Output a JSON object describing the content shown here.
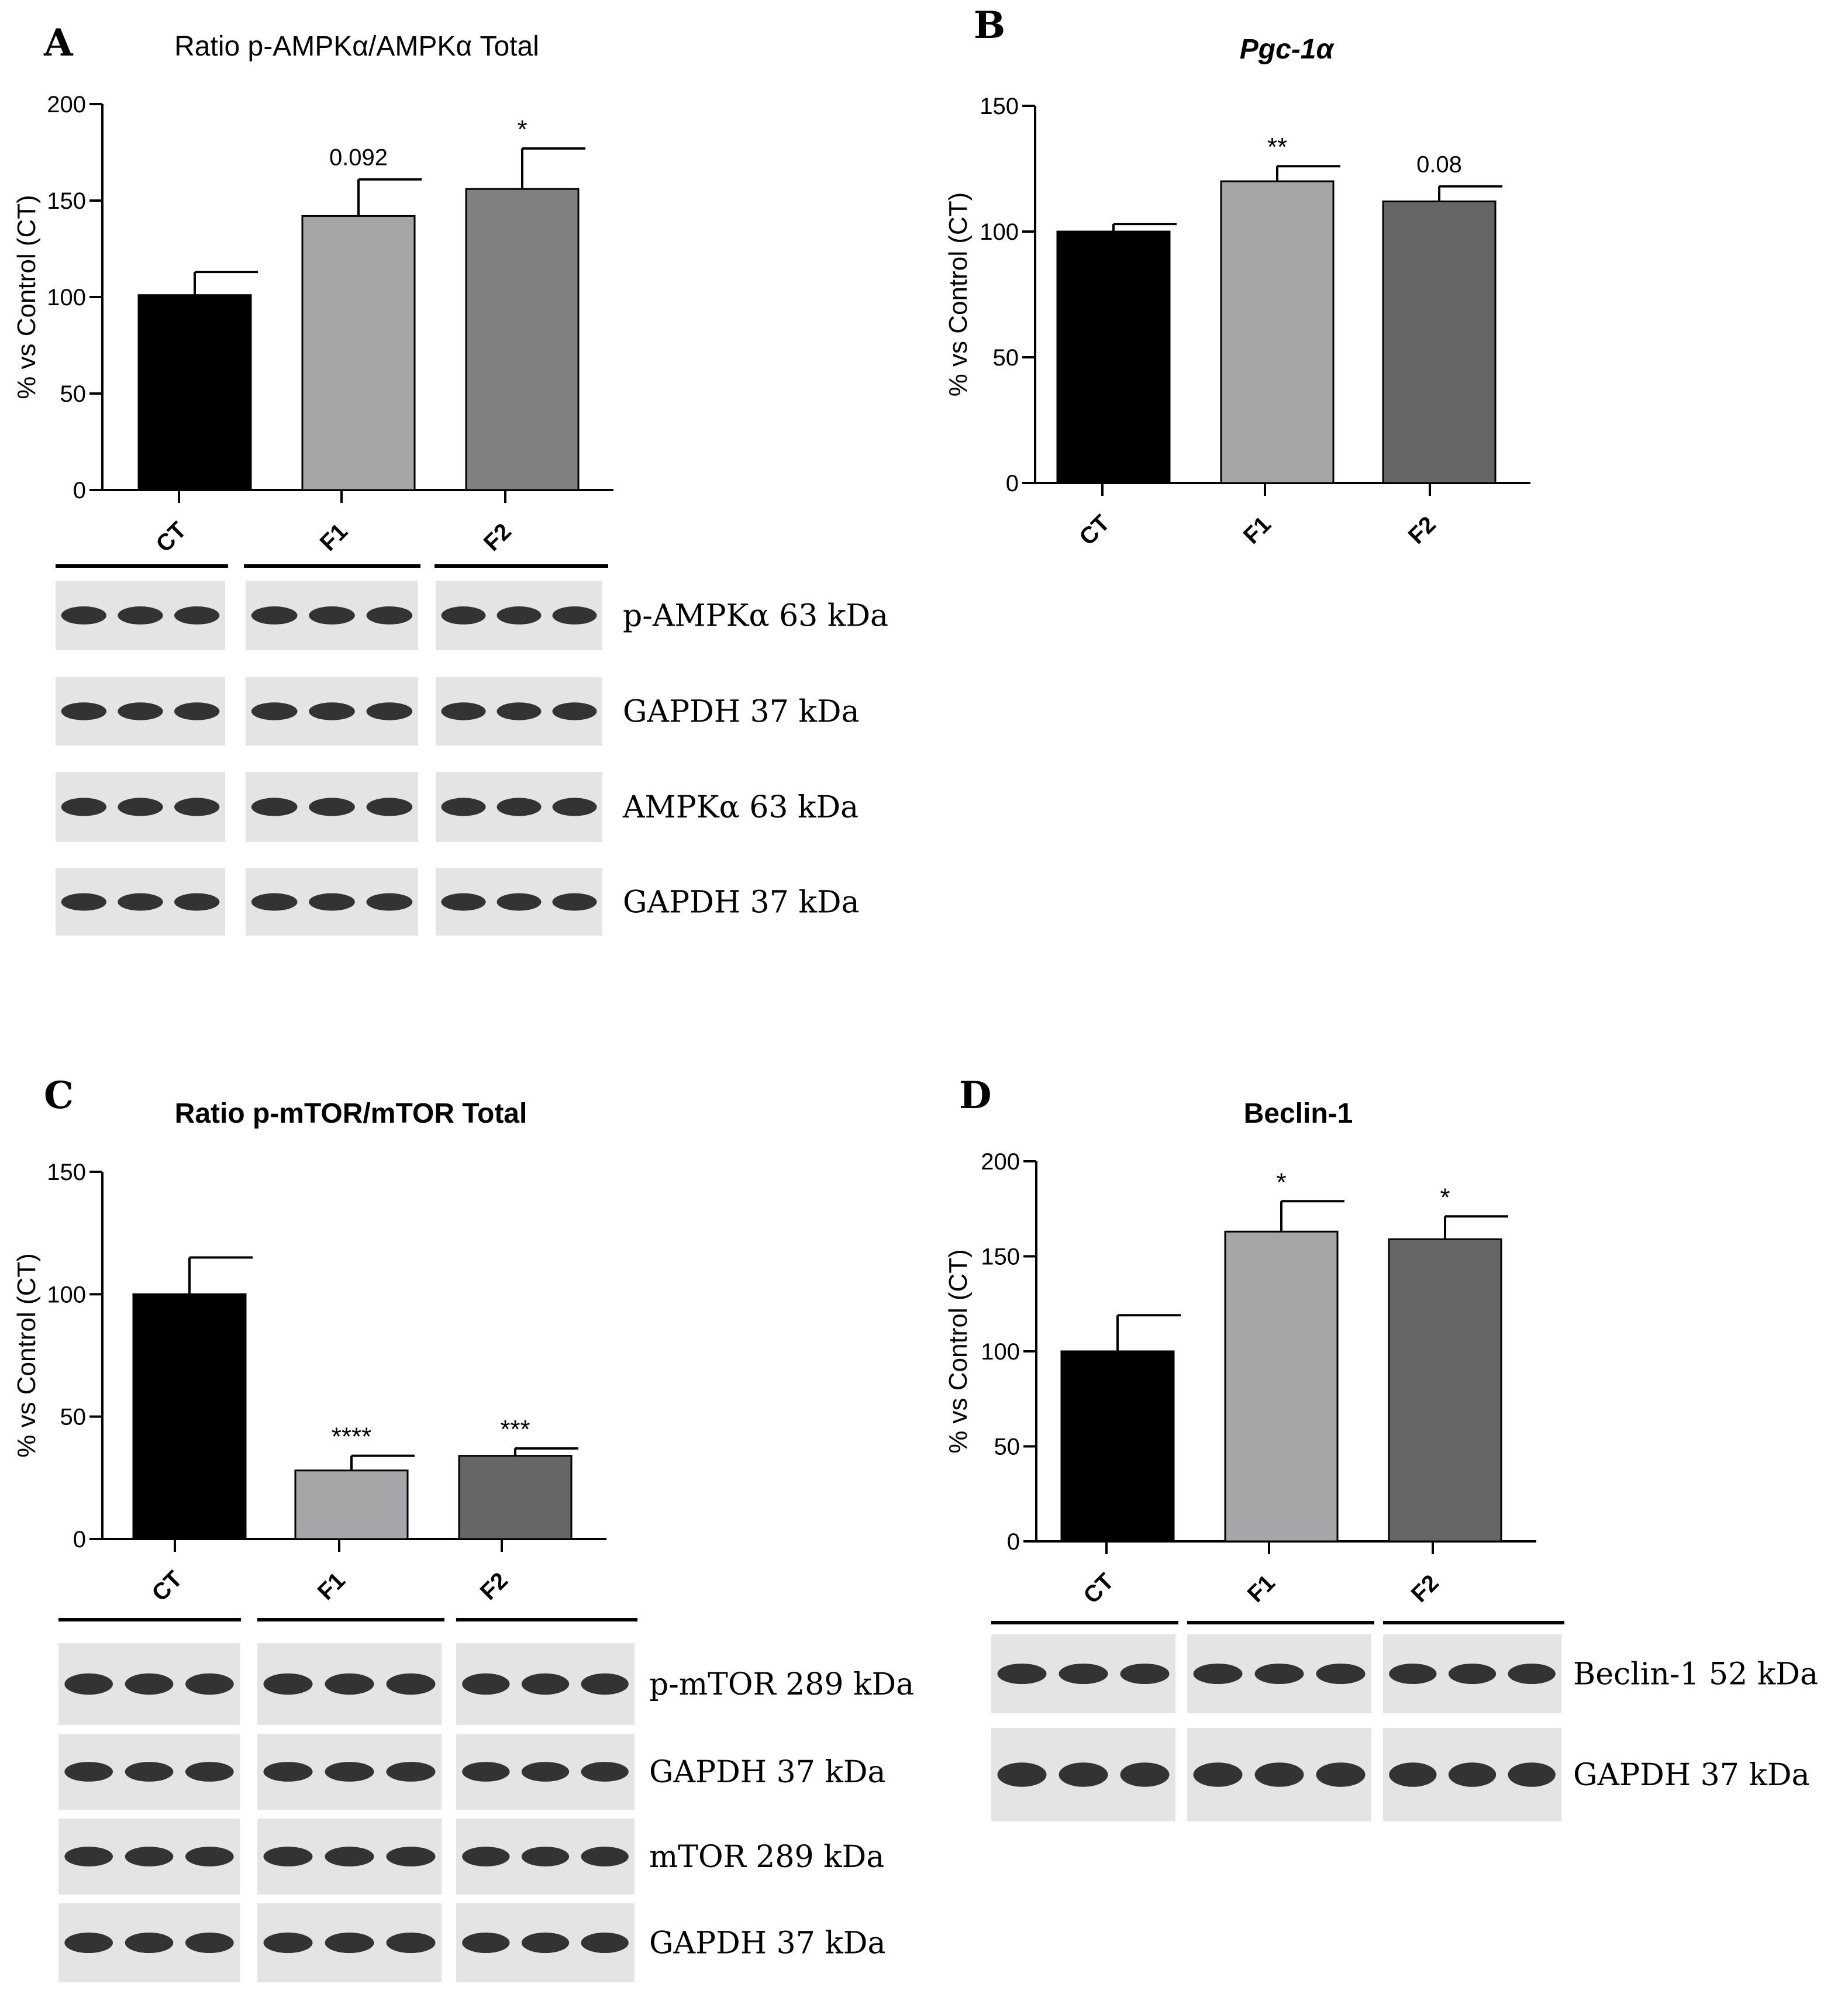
{
  "chart_data": [
    {
      "type": "bar",
      "panel_letter": "A",
      "title": "Ratio p-AMPKα/AMPKα Total",
      "ylabel": "% vs Control (CT)",
      "categories": [
        "CT",
        "F1",
        "F2"
      ],
      "values": [
        101,
        142,
        156
      ],
      "error": [
        12,
        19,
        21
      ],
      "annotations": [
        "",
        "0.092",
        "*"
      ],
      "ylim": [
        0,
        200
      ],
      "yticks": [
        0,
        50,
        100,
        150,
        200
      ],
      "bar_colors": [
        "#000000",
        "#a6a6a8",
        "#808080"
      ],
      "blot_rows": [
        "p-AMPKα 63 kDa",
        "GAPDH 37 kDa",
        "AMPKα 63 kDa",
        "GAPDH 37 kDa"
      ]
    },
    {
      "type": "bar",
      "panel_letter": "B",
      "title": "Pgc-1α",
      "ylabel": "% vs Control (CT)",
      "categories": [
        "CT",
        "F1",
        "F2"
      ],
      "values": [
        100,
        120,
        112
      ],
      "error": [
        3,
        6,
        6
      ],
      "annotations": [
        "",
        "**",
        "0.08"
      ],
      "ylim": [
        0,
        150
      ],
      "yticks": [
        0,
        50,
        100,
        150
      ],
      "bar_colors": [
        "#000000",
        "#a6a6a8",
        "#666666"
      ],
      "blot_rows": []
    },
    {
      "type": "bar",
      "panel_letter": "C",
      "title": "Ratio p-mTOR/mTOR Total",
      "ylabel": "% vs Control (CT)",
      "categories": [
        "CT",
        "F1",
        "F2"
      ],
      "values": [
        100,
        28,
        34
      ],
      "error": [
        15,
        6,
        3
      ],
      "annotations": [
        "",
        "****",
        "***"
      ],
      "ylim": [
        0,
        150
      ],
      "yticks": [
        0,
        50,
        100,
        150
      ],
      "bar_colors": [
        "#000000",
        "#a6a6a8",
        "#666666"
      ],
      "blot_rows": [
        "p-mTOR 289 kDa",
        "GAPDH 37 kDa",
        "mTOR 289 kDa",
        "GAPDH 37 kDa"
      ]
    },
    {
      "type": "bar",
      "panel_letter": "D",
      "title": "Beclin-1",
      "ylabel": "% vs Control (CT)",
      "categories": [
        "CT",
        "F1",
        "F2"
      ],
      "values": [
        100,
        163,
        159
      ],
      "error": [
        19,
        16,
        12
      ],
      "annotations": [
        "",
        "*",
        "*"
      ],
      "ylim": [
        0,
        200
      ],
      "yticks": [
        0,
        50,
        100,
        150,
        200
      ],
      "bar_colors": [
        "#000000",
        "#a6a6a8",
        "#666666"
      ],
      "blot_rows": [
        "Beclin-1 52 kDa",
        "GAPDH 37 kDa"
      ]
    }
  ]
}
